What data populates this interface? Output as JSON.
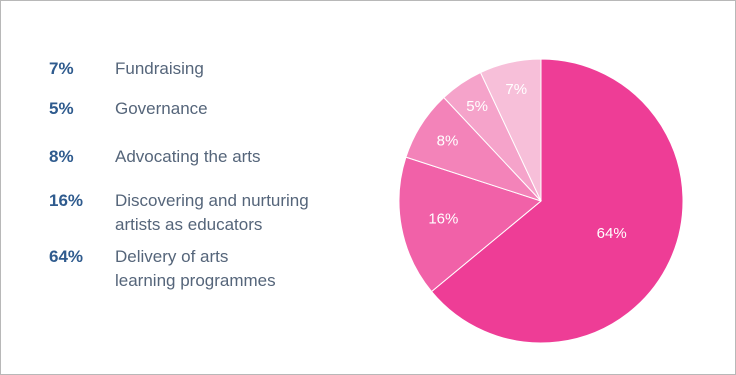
{
  "chart_data": {
    "type": "pie",
    "title": "",
    "slices": [
      {
        "label": "Delivery of arts learning programmes",
        "legend_label": "Delivery of arts\nlearning programmes",
        "value": 64,
        "display": "64%",
        "color": "#ee3d96"
      },
      {
        "label": "Discovering and nurturing artists as educators",
        "legend_label": "Discovering and nurturing\nartists as educators",
        "value": 16,
        "display": "16%",
        "color": "#f161a8"
      },
      {
        "label": "Advocating the arts",
        "legend_label": "Advocating the arts",
        "value": 8,
        "display": "8%",
        "color": "#f383b9"
      },
      {
        "label": "Governance",
        "legend_label": "Governance",
        "value": 5,
        "display": "5%",
        "color": "#f5a3ca"
      },
      {
        "label": "Fundraising",
        "legend_label": "Fundraising",
        "value": 7,
        "display": "7%",
        "color": "#f7bfd9"
      }
    ],
    "legend_order": [
      4,
      3,
      2,
      1,
      0
    ],
    "legend_placement": "left"
  }
}
